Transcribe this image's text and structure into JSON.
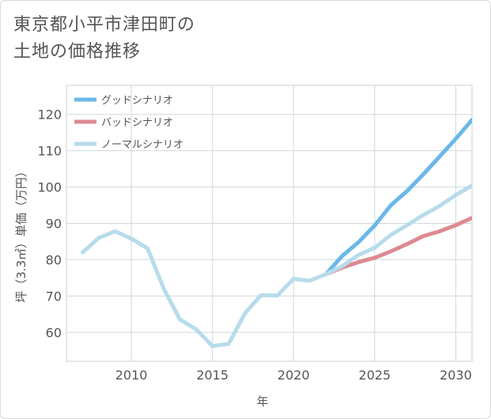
{
  "title_lines": [
    "東京都小平市津田町の",
    "土地の価格推移"
  ],
  "chart_data": {
    "type": "line",
    "xlabel": "年",
    "ylabel": "坪（3.3㎡）単価（万円）",
    "xlim": [
      2006,
      2031
    ],
    "ylim": [
      52,
      128
    ],
    "x_ticks": [
      2010,
      2015,
      2020,
      2025,
      2030
    ],
    "y_ticks": [
      60,
      70,
      80,
      90,
      100,
      110,
      120
    ],
    "grid": true,
    "legend_position": "top-left",
    "series": [
      {
        "name": "グッドシナリオ",
        "color": "#6bb8e8",
        "x": [
          2022,
          2023,
          2024,
          2025,
          2026,
          2027,
          2028,
          2029,
          2030,
          2031
        ],
        "y": [
          76.0,
          81.0,
          84.8,
          89.4,
          95.0,
          98.9,
          103.5,
          108.4,
          113.3,
          118.5
        ]
      },
      {
        "name": "バッドシナリオ",
        "color": "#dd8a91",
        "x": [
          2022,
          2023,
          2024,
          2025,
          2026,
          2027,
          2028,
          2029,
          2030,
          2031
        ],
        "y": [
          76.0,
          77.8,
          79.3,
          80.5,
          82.3,
          84.3,
          86.5,
          87.8,
          89.5,
          91.5
        ]
      },
      {
        "name": "ノーマルシナリオ",
        "color": "#b7dcea",
        "x": [
          2007,
          2008,
          2009,
          2010,
          2011,
          2012,
          2013,
          2014,
          2015,
          2016,
          2017,
          2018,
          2019,
          2020,
          2021,
          2022,
          2023,
          2024,
          2025,
          2026,
          2027,
          2028,
          2029,
          2030,
          2031
        ],
        "y": [
          82.0,
          86.0,
          87.8,
          85.8,
          83.1,
          72.0,
          63.5,
          60.8,
          56.2,
          56.8,
          65.2,
          70.2,
          70.1,
          74.7,
          74.2,
          76.0,
          78.2,
          81.3,
          83.3,
          86.8,
          89.5,
          92.3,
          94.8,
          97.8,
          100.4
        ]
      }
    ]
  }
}
